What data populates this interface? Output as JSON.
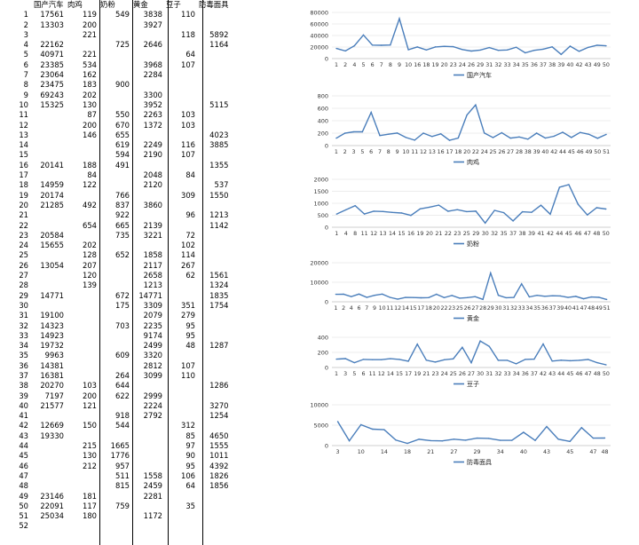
{
  "headers": [
    "国产汽车",
    "肉鸡",
    "奶粉",
    "黄金",
    "豆子",
    "防毒面具"
  ],
  "rows": [
    [
      1,
      "17561",
      "119",
      "549",
      "3838",
      "110",
      ""
    ],
    [
      2,
      "13303",
      "200",
      "",
      "3927",
      "",
      ""
    ],
    [
      3,
      "",
      "221",
      "",
      "",
      "118",
      "5892"
    ],
    [
      4,
      "22162",
      "",
      "725",
      "2646",
      "",
      "1164"
    ],
    [
      5,
      "40971",
      "221",
      "",
      "",
      "64",
      ""
    ],
    [
      6,
      "23385",
      "534",
      "",
      "3968",
      "107",
      ""
    ],
    [
      7,
      "23064",
      "162",
      "",
      "2284",
      "",
      ""
    ],
    [
      8,
      "23475",
      "183",
      "900",
      "",
      "",
      ""
    ],
    [
      9,
      "69243",
      "202",
      "",
      "3300",
      "",
      ""
    ],
    [
      10,
      "15325",
      "130",
      "",
      "3952",
      "",
      "5115"
    ],
    [
      11,
      "",
      "87",
      "550",
      "2263",
      "103",
      ""
    ],
    [
      12,
      "",
      "200",
      "670",
      "1372",
      "103",
      ""
    ],
    [
      13,
      "",
      "146",
      "655",
      "",
      "",
      "4023"
    ],
    [
      14,
      "",
      "",
      "619",
      "2249",
      "116",
      "3885"
    ],
    [
      15,
      "",
      "",
      "594",
      "2190",
      "107",
      ""
    ],
    [
      16,
      "20141",
      "188",
      "491",
      "",
      "",
      "1355"
    ],
    [
      17,
      "",
      "84",
      "",
      "2048",
      "84",
      ""
    ],
    [
      18,
      "14959",
      "122",
      "",
      "2120",
      "",
      "537"
    ],
    [
      19,
      "20174",
      "",
      "766",
      "",
      "309",
      "1550"
    ],
    [
      20,
      "21285",
      "492",
      "837",
      "3860",
      "",
      ""
    ],
    [
      21,
      "",
      "",
      "922",
      "",
      "96",
      "1213"
    ],
    [
      22,
      "",
      "654",
      "665",
      "2139",
      "",
      "1142"
    ],
    [
      23,
      "20584",
      "",
      "735",
      "3221",
      "72",
      ""
    ],
    [
      24,
      "15655",
      "202",
      "",
      "",
      "102",
      ""
    ],
    [
      25,
      "",
      "128",
      "652",
      "1858",
      "114",
      ""
    ],
    [
      26,
      "13054",
      "207",
      "",
      "2117",
      "267",
      ""
    ],
    [
      27,
      "",
      "120",
      "",
      "2658",
      "62",
      "1561"
    ],
    [
      28,
      "",
      "139",
      "",
      "1213",
      "",
      "1324"
    ],
    [
      29,
      "14771",
      "",
      "672",
      "14771",
      "",
      "1835"
    ],
    [
      30,
      "",
      "",
      "175",
      "3309",
      "351",
      "1754"
    ],
    [
      31,
      "19100",
      "",
      "",
      "2079",
      "279",
      ""
    ],
    [
      32,
      "14323",
      "",
      "703",
      "2235",
      "95",
      ""
    ],
    [
      33,
      "14923",
      "",
      "",
      "9174",
      "95",
      ""
    ],
    [
      34,
      "19732",
      "",
      "",
      "2499",
      "48",
      "1287"
    ],
    [
      35,
      "9963",
      "",
      "609",
      "3320",
      "",
      ""
    ],
    [
      36,
      "14381",
      "",
      "",
      "2812",
      "107",
      ""
    ],
    [
      37,
      "16381",
      "",
      "264",
      "3099",
      "110",
      ""
    ],
    [
      38,
      "20270",
      "103",
      "644",
      "",
      "",
      "1286"
    ],
    [
      39,
      "7197",
      "200",
      "622",
      "2999",
      "",
      ""
    ],
    [
      40,
      "21577",
      "121",
      "",
      "2224",
      "",
      "3270"
    ],
    [
      41,
      "",
      "",
      "918",
      "2792",
      "",
      "1254"
    ],
    [
      42,
      "12669",
      "150",
      "544",
      "",
      "312",
      ""
    ],
    [
      43,
      "19330",
      "",
      "",
      "",
      "85",
      "4650"
    ],
    [
      44,
      "",
      "215",
      "1665",
      "",
      "97",
      "1555"
    ],
    [
      45,
      "",
      "130",
      "1776",
      "",
      "90",
      "1011"
    ],
    [
      46,
      "",
      "212",
      "957",
      "",
      "95",
      "4392"
    ],
    [
      47,
      "",
      "",
      "511",
      "1558",
      "106",
      "1826"
    ],
    [
      48,
      "",
      "",
      "815",
      "2459",
      "64",
      "1856"
    ],
    [
      49,
      "23146",
      "181",
      "",
      "2281",
      "",
      ""
    ],
    [
      50,
      "22091",
      "117",
      "759",
      "",
      "35",
      ""
    ],
    [
      51,
      "25034",
      "180",
      "",
      "1172",
      "",
      ""
    ],
    [
      52,
      "",
      "",
      "",
      "",
      "",
      ""
    ]
  ],
  "chart_data": [
    {
      "type": "line",
      "series": [
        {
          "name": "国产汽车",
          "values": [
            17561,
            13303,
            22162,
            40971,
            23385,
            23064,
            23475,
            69243,
            15325,
            20141,
            14959,
            20174,
            21285,
            20584,
            15655,
            13054,
            14771,
            19100,
            14323,
            14923,
            19732,
            9963,
            14381,
            16381,
            20270,
            7197,
            21577,
            12669,
            19330,
            23146,
            22091
          ]
        }
      ],
      "categories": [
        "1",
        "2",
        "4",
        "5",
        "6",
        "7",
        "8",
        "9",
        "10",
        "16",
        "18",
        "19",
        "20",
        "23",
        "24",
        "26",
        "29",
        "31",
        "32",
        "33",
        "34",
        "35",
        "36",
        "37",
        "38",
        "39",
        "40",
        "42",
        "43",
        "49",
        "50"
      ],
      "tick_labels": [
        "1",
        "2",
        "4",
        "5",
        "6",
        "7",
        "8",
        "9",
        "10",
        "16",
        "18",
        "19",
        "20",
        "23",
        "24",
        "26",
        "29",
        "31",
        "32",
        "33",
        "34",
        "35",
        "36",
        "37",
        "38",
        "39",
        "40",
        "42",
        "43",
        "49",
        "50"
      ],
      "ylim": [
        0,
        80000
      ],
      "yticks": [
        0,
        20000,
        40000,
        60000,
        80000
      ],
      "color": "#4a7ebb"
    },
    {
      "type": "line",
      "series": [
        {
          "name": "肉鸡",
          "values": [
            119,
            200,
            221,
            221,
            534,
            162,
            183,
            202,
            130,
            87,
            200,
            146,
            188,
            84,
            122,
            492,
            654,
            202,
            128,
            207,
            120,
            139,
            103,
            200,
            121,
            150,
            215,
            130,
            212,
            181,
            117,
            180
          ]
        }
      ],
      "categories": [
        "1",
        "2",
        "3",
        "5",
        "6",
        "7",
        "8",
        "9",
        "10",
        "11",
        "12",
        "13",
        "16",
        "17",
        "18",
        "20",
        "22",
        "24",
        "25",
        "26",
        "27",
        "28",
        "38",
        "39",
        "40",
        "42",
        "44",
        "45",
        "46",
        "49",
        "50",
        "51"
      ],
      "tick_labels": [
        "1",
        "2",
        "3",
        "5",
        "6",
        "7",
        "8",
        "9",
        "10",
        "11",
        "12",
        "13",
        "16",
        "17",
        "18",
        "20",
        "22",
        "24",
        "25",
        "26",
        "27",
        "28",
        "38",
        "39",
        "40",
        "42",
        "44",
        "45",
        "46",
        "49",
        "50",
        "51"
      ],
      "ylim": [
        0,
        800
      ],
      "yticks": [
        0,
        200,
        400,
        600,
        800
      ],
      "color": "#4a7ebb"
    },
    {
      "type": "line",
      "series": [
        {
          "name": "奶粉",
          "values": [
            549,
            725,
            900,
            550,
            670,
            655,
            619,
            594,
            491,
            766,
            837,
            922,
            665,
            735,
            652,
            672,
            175,
            703,
            609,
            264,
            644,
            622,
            918,
            544,
            1665,
            1776,
            957,
            511,
            815,
            759
          ]
        }
      ],
      "categories": [
        "1",
        "4",
        "8",
        "11",
        "12",
        "13",
        "14",
        "15",
        "16",
        "19",
        "20",
        "21",
        "22",
        "23",
        "25",
        "29",
        "30",
        "32",
        "35",
        "37",
        "38",
        "39",
        "41",
        "42",
        "44",
        "45",
        "46",
        "47",
        "48",
        "50"
      ],
      "tick_labels": [
        "1",
        "4",
        "8",
        "11",
        "12",
        "13",
        "14",
        "15",
        "16",
        "19",
        "20",
        "21",
        "22",
        "23",
        "25",
        "29",
        "30",
        "32",
        "35",
        "37",
        "38",
        "39",
        "41",
        "42",
        "44",
        "45",
        "46",
        "47",
        "48",
        "50"
      ],
      "ylim": [
        0,
        2000
      ],
      "yticks": [
        0,
        500,
        1000,
        1500,
        2000
      ],
      "color": "#4a7ebb"
    },
    {
      "type": "line",
      "series": [
        {
          "name": "黄金",
          "values": [
            3838,
            3927,
            2646,
            3968,
            2284,
            3300,
            3952,
            2263,
            1372,
            2249,
            2190,
            2048,
            2120,
            3860,
            2139,
            3221,
            1858,
            2117,
            2658,
            1213,
            14771,
            3309,
            2079,
            2235,
            9174,
            2499,
            3320,
            2812,
            3099,
            2999,
            2224,
            2792,
            1558,
            2459,
            2281,
            1172
          ]
        }
      ],
      "categories": [
        "1",
        "2",
        "4",
        "6",
        "7",
        "9",
        "10",
        "11",
        "12",
        "14",
        "15",
        "17",
        "18",
        "20",
        "22",
        "23",
        "25",
        "26",
        "27",
        "28",
        "29",
        "30",
        "31",
        "32",
        "33",
        "34",
        "35",
        "36",
        "37",
        "39",
        "40",
        "41",
        "47",
        "48",
        "49",
        "51"
      ],
      "tick_labels": [
        "1",
        "2",
        "4",
        "6",
        "7",
        "9",
        "10",
        "11",
        "12",
        "14",
        "15",
        "17",
        "18",
        "20",
        "22",
        "23",
        "25",
        "26",
        "27",
        "28",
        "29",
        "30",
        "31",
        "32",
        "33",
        "34",
        "35",
        "36",
        "37",
        "39",
        "40",
        "41",
        "47",
        "48",
        "49",
        "51"
      ],
      "ylim": [
        0,
        20000
      ],
      "yticks": [
        0,
        10000,
        20000
      ],
      "color": "#4a7ebb"
    },
    {
      "type": "line",
      "series": [
        {
          "name": "豆子",
          "values": [
            110,
            118,
            64,
            107,
            103,
            103,
            116,
            107,
            84,
            309,
            96,
            72,
            102,
            114,
            267,
            62,
            351,
            279,
            95,
            95,
            48,
            107,
            110,
            312,
            85,
            97,
            90,
            95,
            106,
            64,
            35
          ]
        }
      ],
      "categories": [
        "1",
        "3",
        "5",
        "6",
        "11",
        "12",
        "14",
        "15",
        "17",
        "19",
        "21",
        "23",
        "24",
        "25",
        "26",
        "27",
        "30",
        "31",
        "32",
        "33",
        "34",
        "36",
        "37",
        "42",
        "43",
        "44",
        "45",
        "46",
        "47",
        "48",
        "50"
      ],
      "tick_labels": [
        "1",
        "3",
        "5",
        "6",
        "11",
        "12",
        "14",
        "15",
        "17",
        "19",
        "21",
        "23",
        "24",
        "25",
        "26",
        "27",
        "30",
        "31",
        "32",
        "33",
        "34",
        "36",
        "37",
        "42",
        "43",
        "44",
        "45",
        "46",
        "47",
        "48",
        "50"
      ],
      "ylim": [
        0,
        400
      ],
      "yticks": [
        0,
        200,
        400
      ],
      "color": "#4a7ebb"
    },
    {
      "type": "line",
      "series": [
        {
          "name": "防毒面具",
          "values": [
            5892,
            1164,
            5115,
            4023,
            3885,
            1355,
            537,
            1550,
            1213,
            1142,
            1561,
            1324,
            1835,
            1754,
            1287,
            1286,
            3270,
            1254,
            4650,
            1555,
            1011,
            4392,
            1826,
            1856
          ]
        }
      ],
      "categories": [
        "3",
        "4",
        "10",
        "13",
        "14",
        "16",
        "18",
        "19",
        "21",
        "22",
        "27",
        "28",
        "29",
        "30",
        "34",
        "38",
        "40",
        "41",
        "43",
        "44",
        "45",
        "46",
        "47",
        "48"
      ],
      "tick_labels": [
        "3",
        "",
        "10",
        "",
        "14",
        "",
        "18",
        "",
        "21",
        "",
        "27",
        "",
        "29",
        "",
        "34",
        "",
        "40",
        "",
        "43",
        "",
        "45",
        "",
        "47",
        "48"
      ],
      "ylim": [
        0,
        10000
      ],
      "yticks": [
        0,
        5000,
        10000
      ],
      "color": "#4a7ebb"
    }
  ]
}
